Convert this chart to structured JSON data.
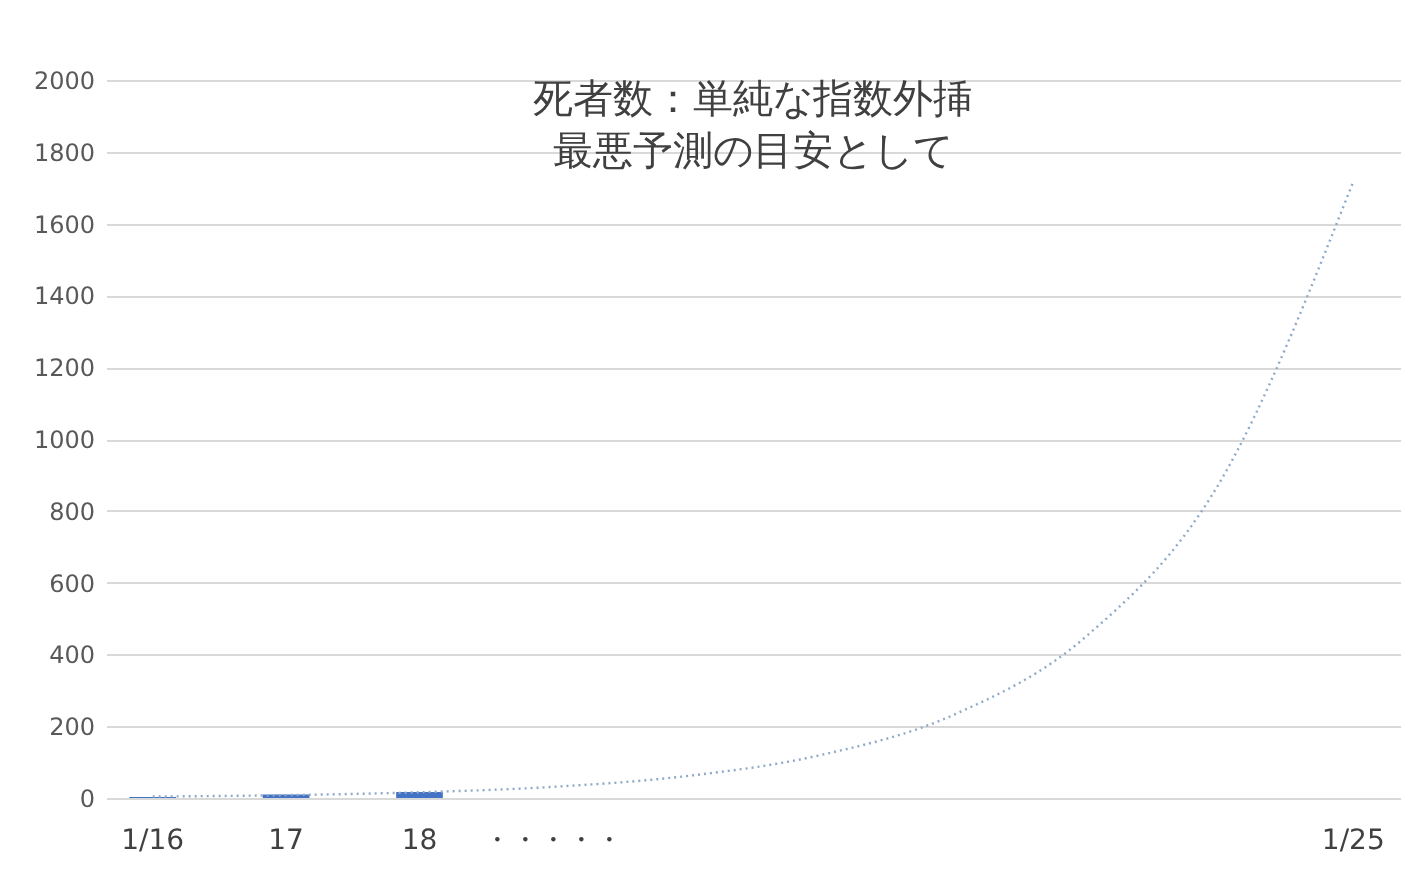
{
  "chart_data": {
    "type": "bar",
    "title": "死者数：単純な指数外挿",
    "subtitle": "最悪予測の目安として",
    "categories": [
      "1/16",
      "17",
      "18",
      "・・・・・",
      null,
      null,
      null,
      null,
      null,
      "1/25"
    ],
    "series": [
      {
        "color": "#4472c4",
        "values": [
          3,
          10,
          17,
          null,
          null,
          null,
          null,
          null,
          null,
          null
        ]
      },
      {
        "type": "line",
        "color": "#8faac8",
        "line_style": "dotted",
        "values": [
          4,
          8,
          16,
          31,
          61,
          119,
          231,
          451,
          880,
          1717
        ]
      }
    ],
    "ylim": [
      0,
      2000
    ],
    "yticks": [
      0,
      200,
      400,
      600,
      800,
      1000,
      1200,
      1400,
      1600,
      1800,
      2000
    ],
    "grid": "y"
  }
}
